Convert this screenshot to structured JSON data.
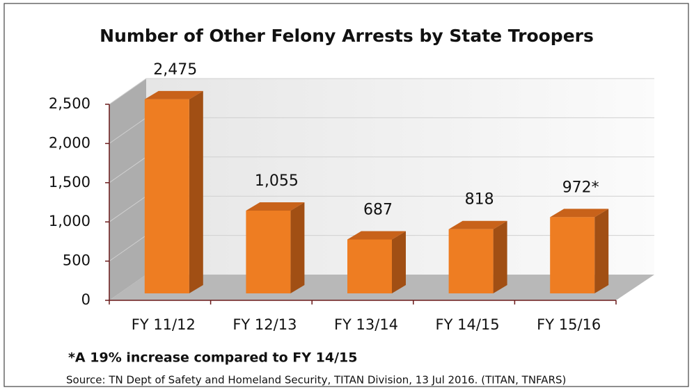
{
  "chart_data": {
    "type": "bar3d",
    "title": "Number of Other Felony Arrests by State Troopers",
    "categories": [
      "FY 11/12",
      "FY 12/13",
      "FY 13/14",
      "FY 14/15",
      "FY 15/16"
    ],
    "values": [
      2475,
      1055,
      687,
      818,
      972
    ],
    "value_labels": [
      "2,475",
      "1,055",
      "687",
      "818",
      "972*"
    ],
    "color": "#ee7d22",
    "ylim": [
      0,
      2500
    ],
    "yticks": [
      0,
      500,
      {
        "value": 1000,
        "label": "1,000"
      },
      {
        "value": 1500,
        "label": "1,500"
      },
      {
        "value": 2000,
        "label": "2,000"
      },
      {
        "value": 2500,
        "label": "2,500"
      }
    ],
    "grid": true,
    "annotation": "*A 19% increase compared to FY 14/15",
    "source": "Source: TN Dept of Safety and Homeland Security, TITAN Division, 13 Jul 2016. (TITAN, TNFARS)"
  }
}
